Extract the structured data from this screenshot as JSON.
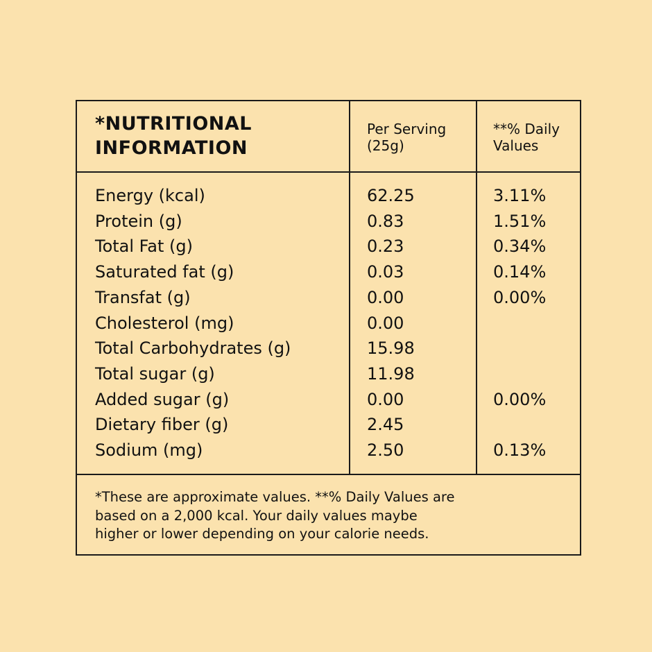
{
  "table": {
    "title_lines": [
      "*NUTRITIONAL",
      "INFORMATION"
    ],
    "column_headers": [
      [
        "Per Serving",
        "(25g)"
      ],
      [
        "**% Daily",
        "Values"
      ]
    ],
    "rows": [
      [
        "Energy (kcal)",
        "62.25",
        "3.11%"
      ],
      [
        "Protein (g)",
        "0.83",
        "1.51%"
      ],
      [
        "Total Fat (g)",
        "0.23",
        "0.34%"
      ],
      [
        "Saturated fat (g)",
        "0.03",
        "0.14%"
      ],
      [
        "Transfat (g)",
        "0.00",
        "0.00%"
      ],
      [
        "Cholesterol (mg)",
        "0.00",
        null
      ],
      [
        "Total Carbohydrates (g)",
        "15.98",
        null
      ],
      [
        "Total sugar (g)",
        "11.98",
        null
      ],
      [
        "Added sugar (g)",
        "0.00",
        "0.00%"
      ],
      [
        "Dietary fiber (g)",
        "2.45",
        null
      ],
      [
        "Sodium (mg)",
        "2.50",
        "0.13%"
      ]
    ],
    "footnote_lines": [
      "*These are approximate values. **% Daily Values are",
      "based on a 2,000 kcal. Your daily values maybe",
      "higher or lower depending on your calorie needs."
    ]
  }
}
